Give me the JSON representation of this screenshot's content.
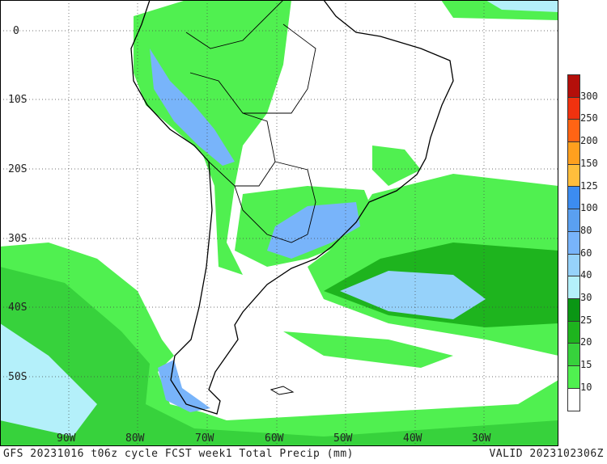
{
  "title": {
    "left": "GFS 20231016 t06z cycle FCST week1 Total Precip (mm)",
    "right": "VALID 2023102306Z"
  },
  "axes": {
    "lon_labels": [
      "90W",
      "80W",
      "70W",
      "60W",
      "50W",
      "40W",
      "30W"
    ],
    "lat_labels": [
      "0",
      "10S",
      "20S",
      "30S",
      "40S",
      "50S"
    ]
  },
  "colorbar": {
    "unit": "mm",
    "labels": [
      "300",
      "250",
      "200",
      "150",
      "125",
      "100",
      "80",
      "60",
      "40",
      "30",
      "25",
      "20",
      "15",
      "10"
    ],
    "colors": [
      "#b40f0a",
      "#f0320f",
      "#ff6414",
      "#ffa01e",
      "#ffbe3c",
      "#3c8cf0",
      "#5aa0f0",
      "#78b4fa",
      "#96d2fa",
      "#b4f0fa",
      "#0a9614",
      "#1eb41e",
      "#37d23c",
      "#50f050",
      "#ffffff"
    ]
  }
}
